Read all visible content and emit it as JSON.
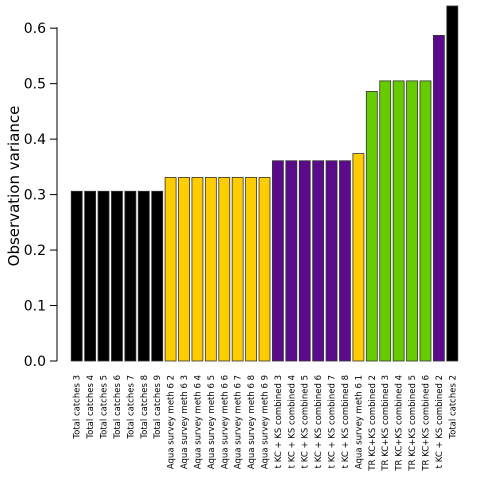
{
  "chart_data": {
    "type": "bar",
    "title": "",
    "xlabel": "",
    "ylabel": "Observation variance",
    "ylim": [
      0,
      0.64
    ],
    "yticks": [
      0.0,
      0.1,
      0.2,
      0.3,
      0.4,
      0.5,
      0.6
    ],
    "ytick_labels": [
      "0.0",
      "0.1",
      "0.2",
      "0.3",
      "0.4",
      "0.5",
      "0.6"
    ],
    "grid": false,
    "legend": "none",
    "categories": [
      "Total catches 3",
      "Total catches 4",
      "Total catches 5",
      "Total catches 6",
      "Total catches 7",
      "Total catches 8",
      "Total catches 9",
      "Aqua survey meth 6 2",
      "Aqua survey meth 6 3",
      "Aqua survey meth 6 4",
      "Aqua survey meth 6 5",
      "Aqua survey meth 6 6",
      "Aqua survey meth 6 7",
      "Aqua survey meth 6 8",
      "Aqua survey meth 6 9",
      "t KC + KS combined 3",
      "t KC + KS combined 4",
      "t KC + KS combined 5",
      "t KC + KS combined 6",
      "t KC + KS combined 7",
      "t KC + KS combined 8",
      "Aqua survey meth 6 1",
      "TR KC+KS combined 2",
      "TR KC+KS combined 3",
      "TR KC+KS combined 4",
      "TR KC+KS combined 5",
      "TR KC+KS combined 6",
      "t KC + KS combined 2",
      "Total catches 2"
    ],
    "values": [
      0.306,
      0.306,
      0.306,
      0.306,
      0.306,
      0.306,
      0.306,
      0.331,
      0.331,
      0.331,
      0.331,
      0.331,
      0.331,
      0.331,
      0.331,
      0.361,
      0.361,
      0.361,
      0.361,
      0.361,
      0.361,
      0.374,
      0.486,
      0.505,
      0.505,
      0.505,
      0.505,
      0.587,
      0.645
    ],
    "bar_colors": [
      "#000000",
      "#000000",
      "#000000",
      "#000000",
      "#000000",
      "#000000",
      "#000000",
      "#ffcc00",
      "#ffcc00",
      "#ffcc00",
      "#ffcc00",
      "#ffcc00",
      "#ffcc00",
      "#ffcc00",
      "#ffcc00",
      "#5c0a8c",
      "#5c0a8c",
      "#5c0a8c",
      "#5c0a8c",
      "#5c0a8c",
      "#5c0a8c",
      "#ffcc00",
      "#66cc00",
      "#66cc00",
      "#66cc00",
      "#66cc00",
      "#66cc00",
      "#5c0a8c",
      "#000000"
    ]
  }
}
